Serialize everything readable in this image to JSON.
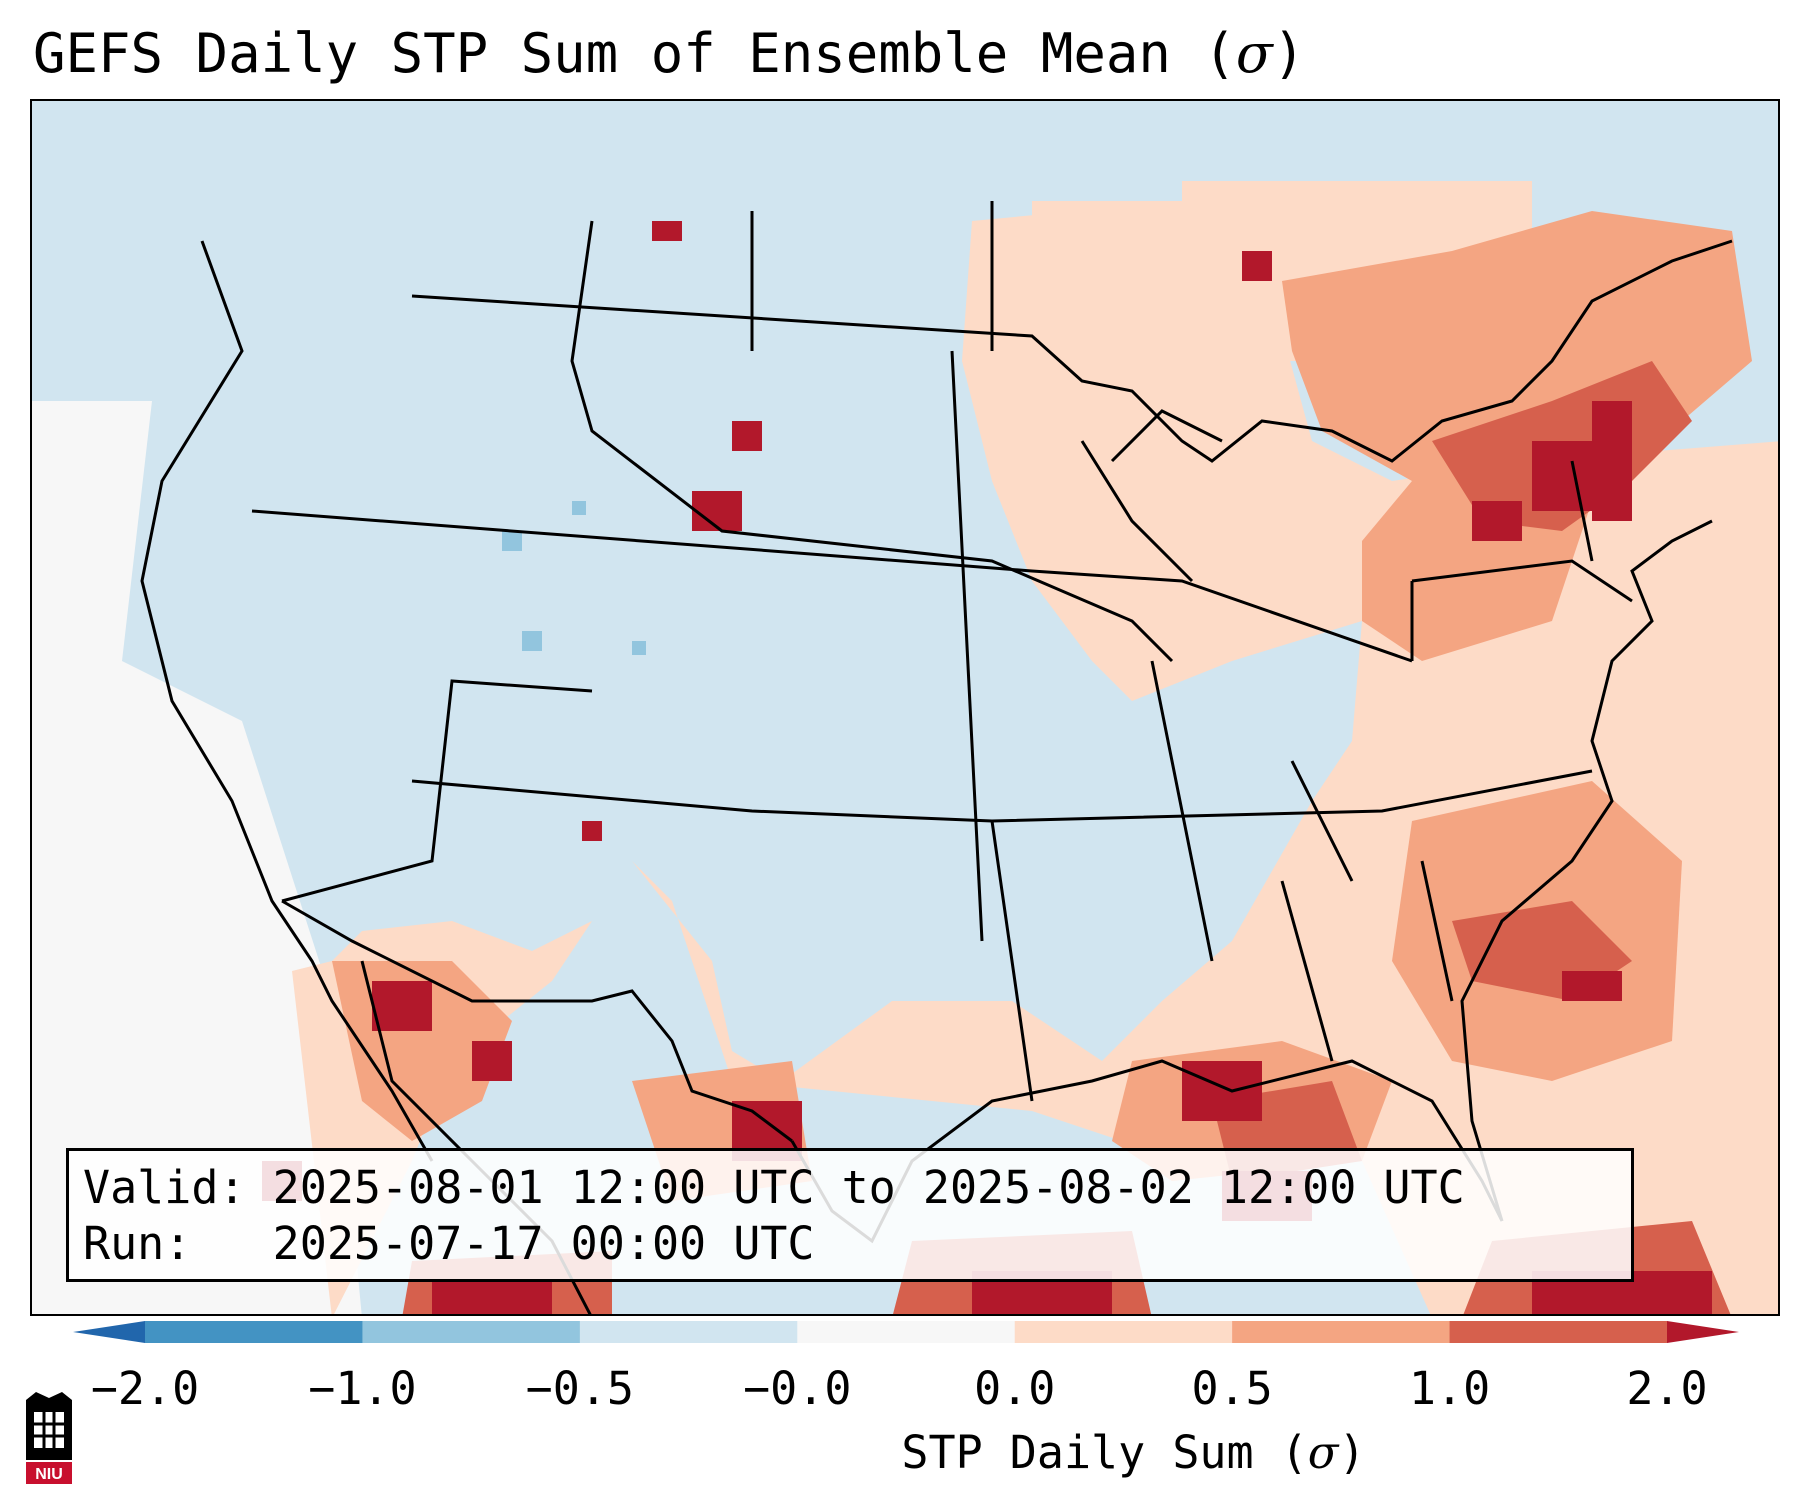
{
  "title": {
    "text_main": "GEFS Daily STP Sum of Ensemble Mean (",
    "symbol": "σ",
    "text_close": ")"
  },
  "info_box": {
    "valid_line": "Valid: 2025-08-01 12:00 UTC to 2025-08-02 12:00 UTC",
    "run_line": "Run:   2025-07-17 00:00 UTC"
  },
  "colorbar": {
    "label_main": "STP Daily Sum (",
    "label_symbol": "σ",
    "label_close": ")",
    "ticks": [
      "−2.0",
      "−1.0",
      "−0.5",
      "−0.0",
      "0.0",
      "0.5",
      "1.0",
      "2.0"
    ],
    "colors": [
      "#2166ac",
      "#4393c3",
      "#92c5de",
      "#d1e5f0",
      "#f7f7f7",
      "#fddbc7",
      "#f4a582",
      "#d6604d",
      "#b2182b"
    ],
    "extend_low_color": "#2166ac",
    "extend_high_color": "#b2182b"
  },
  "logo": {
    "text": "NIU",
    "color": "#c8102e"
  },
  "map": {
    "background_color": "#d1e5f0",
    "region_labels": []
  }
}
